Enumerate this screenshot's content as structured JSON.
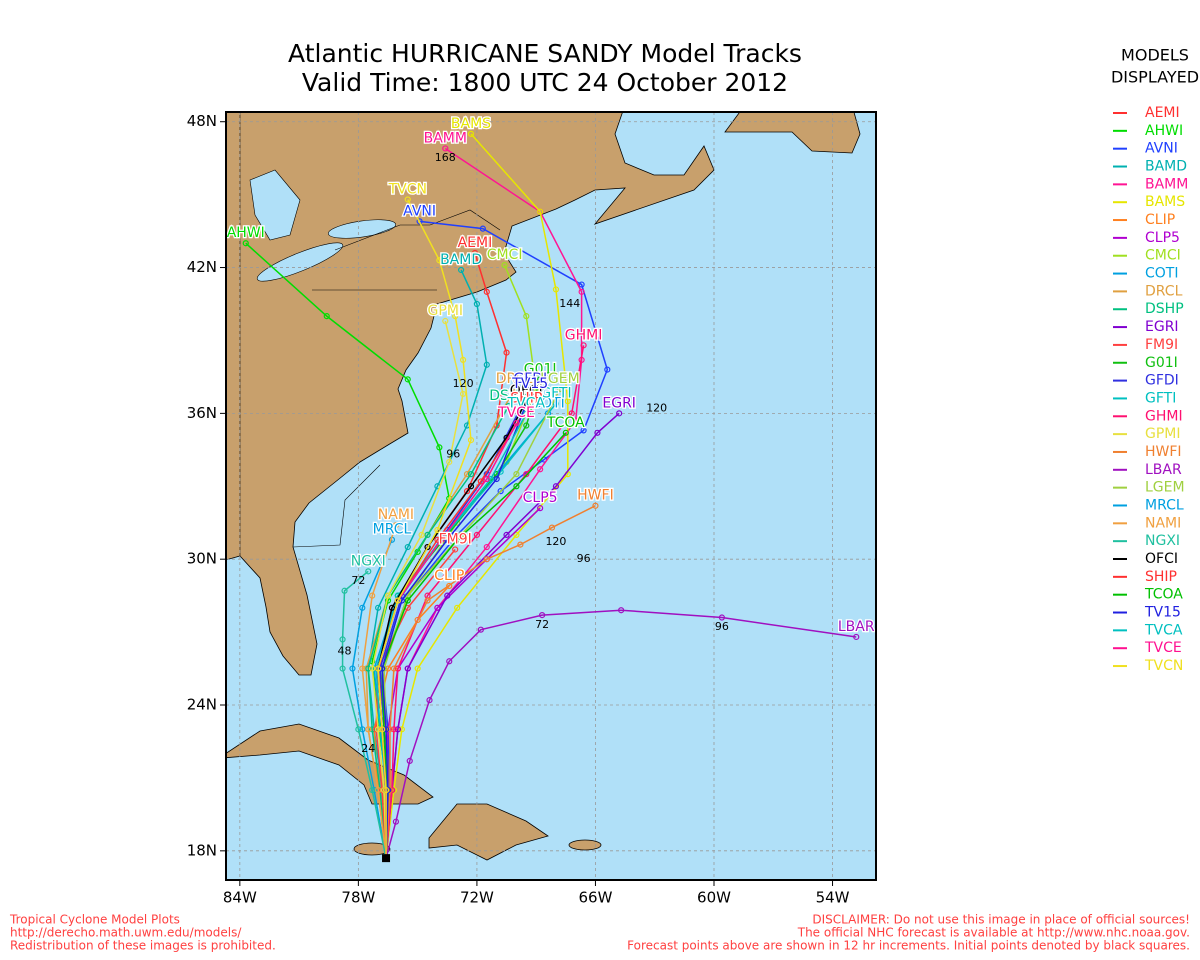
{
  "title": "Atlantic HURRICANE SANDY Model Tracks",
  "subtitle": "Valid Time: 1800 UTC 24 October 2012",
  "legend_title": [
    "MODELS",
    "DISPLAYED"
  ],
  "footer_left": [
    "Tropical Cyclone Model Plots",
    "http://derecho.math.uwm.edu/models/",
    "Redistribution of these images is prohibited."
  ],
  "footer_right": [
    "DISCLAIMER: Do not use this image in place of official sources!",
    "The official NHC forecast is available at http://www.nhc.noaa.gov.",
    "Forecast points above are shown in 12 hr increments. Initial points denoted by black squares."
  ],
  "lonlim": [
    -84.7,
    -51.8
  ],
  "latlim": [
    16.8,
    48.4
  ],
  "lonticks": [
    {
      "value": -84,
      "label": "84W"
    },
    {
      "value": -78,
      "label": "78W"
    },
    {
      "value": -72,
      "label": "72W"
    },
    {
      "value": -66,
      "label": "66W"
    },
    {
      "value": -60,
      "label": "60W"
    },
    {
      "value": -54,
      "label": "54W"
    }
  ],
  "latticks": [
    {
      "value": 18,
      "label": "18N"
    },
    {
      "value": 24,
      "label": "24N"
    },
    {
      "value": 30,
      "label": "30N"
    },
    {
      "value": 36,
      "label": "36N"
    },
    {
      "value": 42,
      "label": "42N"
    },
    {
      "value": 48,
      "label": "48N"
    }
  ],
  "grid": true,
  "start": [
    -76.6,
    17.7
  ],
  "tracks": [
    {
      "name": "AEMI",
      "color": "#ff3030",
      "points": [
        [
          -76.6,
          17.7
        ],
        [
          -76.4,
          20.5
        ],
        [
          -76.6,
          23
        ],
        [
          -77,
          25.5
        ],
        [
          -76.3,
          28
        ],
        [
          -74.5,
          30.5
        ],
        [
          -72.5,
          32.8
        ],
        [
          -71,
          35.5
        ],
        [
          -70.5,
          38.5
        ],
        [
          -71.5,
          41
        ],
        [
          -72.1,
          42.6
        ]
      ]
    },
    {
      "name": "AHWI",
      "color": "#00dd00",
      "points": [
        [
          -76.6,
          17.7
        ],
        [
          -76.5,
          20.5
        ],
        [
          -77,
          23.2
        ],
        [
          -77.3,
          25.8
        ],
        [
          -76.5,
          28.3
        ],
        [
          -75,
          30.3
        ],
        [
          -73.4,
          32.5
        ],
        [
          -73.9,
          34.6
        ],
        [
          -75.5,
          37.4
        ],
        [
          -79.6,
          40
        ],
        [
          -83.7,
          43
        ]
      ]
    },
    {
      "name": "AVNI",
      "color": "#2040ff",
      "points": [
        [
          -76.6,
          17.7
        ],
        [
          -76.4,
          20.5
        ],
        [
          -76.5,
          23
        ],
        [
          -76.8,
          25.5
        ],
        [
          -75.5,
          28.5
        ],
        [
          -73,
          31
        ],
        [
          -70.8,
          32.8
        ],
        [
          -68.6,
          34.1
        ],
        [
          -66.6,
          35.3
        ],
        [
          -65.4,
          37.8
        ],
        [
          -66.7,
          41.3
        ],
        [
          -71.7,
          43.6
        ],
        [
          -74.9,
          43.9
        ]
      ]
    },
    {
      "name": "BAMD",
      "color": "#00b0b0",
      "points": [
        [
          -76.6,
          17.7
        ],
        [
          -76.8,
          20.5
        ],
        [
          -77.2,
          23
        ],
        [
          -77.5,
          25.5
        ],
        [
          -77,
          28
        ],
        [
          -75.5,
          30.5
        ],
        [
          -74,
          33
        ],
        [
          -72.5,
          35.5
        ],
        [
          -71.5,
          38
        ],
        [
          -72,
          40.5
        ],
        [
          -72.8,
          41.9
        ]
      ]
    },
    {
      "name": "BAMM",
      "color": "#ff1493",
      "points": [
        [
          -76.6,
          17.7
        ],
        [
          -76.3,
          20.5
        ],
        [
          -76,
          23
        ],
        [
          -75.5,
          25.5
        ],
        [
          -74,
          28
        ],
        [
          -71.5,
          30.5
        ],
        [
          -68.8,
          33.7
        ],
        [
          -67,
          35.7
        ],
        [
          -66.7,
          38.2
        ],
        [
          -66.7,
          41
        ],
        [
          -68.8,
          44.3
        ],
        [
          -73.6,
          46.9
        ]
      ]
    },
    {
      "name": "BAMS",
      "color": "#e6e600",
      "points": [
        [
          -76.6,
          17.7
        ],
        [
          -76.2,
          20.5
        ],
        [
          -75.8,
          23
        ],
        [
          -75,
          25.5
        ],
        [
          -73,
          28
        ],
        [
          -70,
          31
        ],
        [
          -67.4,
          33.5
        ],
        [
          -67.4,
          36.5
        ],
        [
          -68,
          41.1
        ],
        [
          -68.8,
          44.3
        ],
        [
          -72.3,
          47.5
        ]
      ]
    },
    {
      "name": "CLIP",
      "color": "#ff8020",
      "points": [
        [
          -76.6,
          17.7
        ],
        [
          -77,
          20.5
        ],
        [
          -77.2,
          23
        ],
        [
          -76.5,
          25.5
        ],
        [
          -75,
          27.5
        ],
        [
          -73.4,
          28.9
        ]
      ]
    },
    {
      "name": "CLP5",
      "color": "#b000d0",
      "points": [
        [
          -76.6,
          17.7
        ],
        [
          -76.6,
          20.5
        ],
        [
          -76.5,
          23
        ],
        [
          -76,
          25.5
        ],
        [
          -74,
          28
        ],
        [
          -71.5,
          30
        ],
        [
          -68.8,
          32.1
        ]
      ]
    },
    {
      "name": "CMCI",
      "color": "#a0e020",
      "points": [
        [
          -76.6,
          17.7
        ],
        [
          -76.5,
          20.5
        ],
        [
          -76.7,
          23
        ],
        [
          -76.8,
          25.5
        ],
        [
          -75.5,
          28.5
        ],
        [
          -73,
          31.5
        ],
        [
          -70.5,
          34
        ],
        [
          -69,
          37
        ],
        [
          -69.5,
          40
        ],
        [
          -70.6,
          42.1
        ]
      ]
    },
    {
      "name": "COTI",
      "color": "#00a0e0",
      "points": [
        [
          -76.6,
          17.7
        ],
        [
          -76.5,
          20.5
        ],
        [
          -76.9,
          23
        ],
        [
          -77.2,
          25.5
        ],
        [
          -76,
          28.5
        ],
        [
          -73.5,
          31
        ],
        [
          -71,
          33.5
        ],
        [
          -68.4,
          36
        ]
      ]
    },
    {
      "name": "DRCL",
      "color": "#e0a040",
      "points": [
        [
          -76.6,
          17.7
        ],
        [
          -77,
          20.5
        ],
        [
          -77.5,
          23
        ],
        [
          -77.6,
          25.5
        ],
        [
          -76.5,
          28.5
        ],
        [
          -74.5,
          31
        ],
        [
          -72.5,
          33.5
        ],
        [
          -70.1,
          37
        ]
      ]
    },
    {
      "name": "DSHP",
      "color": "#00c080",
      "points": [
        [
          -76.6,
          17.7
        ],
        [
          -76.9,
          20.5
        ],
        [
          -77.3,
          23
        ],
        [
          -77.5,
          25.5
        ],
        [
          -76.5,
          28.5
        ],
        [
          -74.5,
          31
        ],
        [
          -72.3,
          33.5
        ],
        [
          -70.4,
          36.3
        ]
      ]
    },
    {
      "name": "EGRI",
      "color": "#8000d0",
      "points": [
        [
          -76.6,
          17.7
        ],
        [
          -76.3,
          20.5
        ],
        [
          -76,
          23
        ],
        [
          -75.5,
          25.5
        ],
        [
          -73.5,
          28.5
        ],
        [
          -70.5,
          31
        ],
        [
          -68,
          33
        ],
        [
          -65.9,
          35.2
        ],
        [
          -64.8,
          36
        ]
      ]
    },
    {
      "name": "FM9I",
      "color": "#ff4040",
      "points": [
        [
          -76.6,
          17.7
        ],
        [
          -76.8,
          20.5
        ],
        [
          -77.1,
          23
        ],
        [
          -77,
          25.5
        ],
        [
          -75.5,
          28
        ],
        [
          -73.1,
          30.4
        ]
      ]
    },
    {
      "name": "G01I",
      "color": "#10c010",
      "points": [
        [
          -76.6,
          17.7
        ],
        [
          -76.5,
          20.5
        ],
        [
          -76.8,
          23
        ],
        [
          -77,
          25.5
        ],
        [
          -76,
          28.5
        ],
        [
          -73.5,
          31
        ],
        [
          -71,
          33.5
        ],
        [
          -69.5,
          35.5
        ],
        [
          -68.8,
          37.4
        ]
      ]
    },
    {
      "name": "GFDI",
      "color": "#3030e0",
      "points": [
        [
          -76.6,
          17.7
        ],
        [
          -76.5,
          20.5
        ],
        [
          -76.7,
          23
        ],
        [
          -76.9,
          25.5
        ],
        [
          -75.8,
          28.5
        ],
        [
          -73.5,
          31.2
        ],
        [
          -71.5,
          33.5
        ],
        [
          -69.3,
          37
        ]
      ]
    },
    {
      "name": "GFTI",
      "color": "#00c0c0",
      "points": [
        [
          -76.6,
          17.7
        ],
        [
          -76.6,
          20.5
        ],
        [
          -76.9,
          23
        ],
        [
          -77.1,
          25.5
        ],
        [
          -76,
          28.5
        ],
        [
          -73.6,
          31
        ],
        [
          -70.8,
          33.6
        ],
        [
          -68,
          36.4
        ]
      ]
    },
    {
      "name": "GHMI",
      "color": "#ff1070",
      "points": [
        [
          -76.6,
          17.7
        ],
        [
          -76.3,
          20.5
        ],
        [
          -76.2,
          23
        ],
        [
          -76,
          25.5
        ],
        [
          -74.5,
          28.5
        ],
        [
          -72,
          31
        ],
        [
          -69.5,
          33.5
        ],
        [
          -67.2,
          36
        ],
        [
          -66.6,
          38.8
        ]
      ]
    },
    {
      "name": "GPMI",
      "color": "#e8e040",
      "points": [
        [
          -76.6,
          17.7
        ],
        [
          -76.7,
          20.5
        ],
        [
          -77,
          23
        ],
        [
          -77.3,
          25.5
        ],
        [
          -76.5,
          28.5
        ],
        [
          -74.8,
          31
        ],
        [
          -73.4,
          34
        ],
        [
          -72.7,
          36.8
        ],
        [
          -73.6,
          39.8
        ]
      ]
    },
    {
      "name": "HWFI",
      "color": "#f08030",
      "points": [
        [
          -76.6,
          17.7
        ],
        [
          -76.4,
          20.5
        ],
        [
          -76.4,
          23
        ],
        [
          -76.2,
          25.5
        ],
        [
          -74.5,
          28.3
        ],
        [
          -71.5,
          30
        ],
        [
          -69.8,
          30.6
        ],
        [
          -68.2,
          31.3
        ],
        [
          -66,
          32.2
        ]
      ]
    },
    {
      "name": "LBAR",
      "color": "#a010c0",
      "points": [
        [
          -76.6,
          17.7
        ],
        [
          -76.1,
          19.2
        ],
        [
          -75.4,
          21.7
        ],
        [
          -74.4,
          24.2
        ],
        [
          -73.4,
          25.8
        ],
        [
          -71.8,
          27.1
        ],
        [
          -68.7,
          27.7
        ],
        [
          -64.7,
          27.9
        ],
        [
          -59.6,
          27.6
        ],
        [
          -52.8,
          26.8
        ]
      ]
    },
    {
      "name": "LGEM",
      "color": "#a0d040",
      "points": [
        [
          -76.6,
          17.7
        ],
        [
          -76.5,
          20.5
        ],
        [
          -76.6,
          23
        ],
        [
          -76.7,
          25.5
        ],
        [
          -75.5,
          28.5
        ],
        [
          -72.8,
          31
        ],
        [
          -70,
          33.5
        ],
        [
          -67.8,
          37
        ]
      ]
    },
    {
      "name": "MRCL",
      "color": "#00a0e0",
      "points": [
        [
          -76.6,
          17.7
        ],
        [
          -77.2,
          20.5
        ],
        [
          -77.8,
          23
        ],
        [
          -78.3,
          25.5
        ],
        [
          -77.8,
          28
        ],
        [
          -76.3,
          30.8
        ]
      ]
    },
    {
      "name": "NAMI",
      "color": "#f0a040",
      "points": [
        [
          -76.6,
          17.7
        ],
        [
          -77,
          20.5
        ],
        [
          -77.5,
          23
        ],
        [
          -77.8,
          25.5
        ],
        [
          -77.3,
          28.5
        ],
        [
          -76.1,
          31.4
        ]
      ]
    },
    {
      "name": "NGXI",
      "color": "#20c0a0",
      "points": [
        [
          -76.6,
          17.7
        ],
        [
          -77.3,
          20.5
        ],
        [
          -78,
          23
        ],
        [
          -78.8,
          25.5
        ],
        [
          -78.8,
          26.7
        ],
        [
          -78.7,
          28.7
        ],
        [
          -77.5,
          29.5
        ]
      ]
    },
    {
      "name": "OFCI",
      "color": "#000000",
      "points": [
        [
          -76.6,
          17.7
        ],
        [
          -76.6,
          20.5
        ],
        [
          -76.8,
          23
        ],
        [
          -77,
          25.5
        ],
        [
          -76.3,
          28
        ],
        [
          -74.5,
          30.5
        ],
        [
          -72.3,
          33
        ],
        [
          -70.5,
          35
        ],
        [
          -69.5,
          36.5
        ]
      ]
    },
    {
      "name": "SHIP",
      "color": "#ff3030",
      "points": [
        [
          -76.6,
          17.7
        ],
        [
          -76.6,
          20.5
        ],
        [
          -76.8,
          23
        ],
        [
          -77,
          25.5
        ],
        [
          -76,
          28.3
        ],
        [
          -74,
          30.8
        ],
        [
          -71.8,
          33.2
        ],
        [
          -69.5,
          36.2
        ]
      ]
    },
    {
      "name": "TCOA",
      "color": "#00c000",
      "points": [
        [
          -76.6,
          17.7
        ],
        [
          -76.5,
          20.5
        ],
        [
          -76.7,
          23
        ],
        [
          -76.8,
          25.5
        ],
        [
          -75.5,
          28.3
        ],
        [
          -73,
          30.8
        ],
        [
          -70,
          33
        ],
        [
          -67.5,
          35.2
        ]
      ]
    },
    {
      "name": "TV15",
      "color": "#2020e0",
      "points": [
        [
          -76.6,
          17.7
        ],
        [
          -76.5,
          20.5
        ],
        [
          -76.6,
          23
        ],
        [
          -76.8,
          25.5
        ],
        [
          -75.8,
          28.3
        ],
        [
          -73.5,
          30.8
        ],
        [
          -71,
          33.3
        ],
        [
          -69.3,
          36.8
        ]
      ]
    },
    {
      "name": "TVCA",
      "color": "#00c0c0",
      "points": [
        [
          -76.6,
          17.7
        ],
        [
          -76.6,
          20.5
        ],
        [
          -76.8,
          23
        ],
        [
          -77,
          25.5
        ],
        [
          -76,
          28.3
        ],
        [
          -73.8,
          30.8
        ],
        [
          -71.3,
          33.3
        ],
        [
          -69.5,
          36
        ]
      ]
    },
    {
      "name": "TVCE",
      "color": "#ff1090",
      "points": [
        [
          -76.6,
          17.7
        ],
        [
          -76.6,
          20.5
        ],
        [
          -76.8,
          23
        ],
        [
          -77,
          25.5
        ],
        [
          -76,
          28.3
        ],
        [
          -73.8,
          30.8
        ],
        [
          -71.5,
          33.3
        ],
        [
          -70,
          35.6
        ]
      ]
    },
    {
      "name": "TVCN",
      "color": "#f0e020",
      "points": [
        [
          -76.6,
          17.7
        ],
        [
          -76.6,
          20.5
        ],
        [
          -76.8,
          23
        ],
        [
          -77,
          25.5
        ],
        [
          -76,
          28.3
        ],
        [
          -74,
          31.2
        ],
        [
          -72.3,
          34.9
        ],
        [
          -72.7,
          38.2
        ],
        [
          -73.1,
          40
        ],
        [
          -73.9,
          42.3
        ],
        [
          -75.5,
          44.8
        ]
      ]
    }
  ],
  "hour_labels": [
    {
      "text": "168",
      "lon": -73.6,
      "lat": 46.5
    },
    {
      "text": "144",
      "lon": -67.3,
      "lat": 40.5
    },
    {
      "text": "120",
      "lon": -72.7,
      "lat": 37.2
    },
    {
      "text": "120",
      "lon": -62.9,
      "lat": 36.2
    },
    {
      "text": "96",
      "lon": -73.2,
      "lat": 34.3
    },
    {
      "text": "96",
      "lon": -59.6,
      "lat": 27.2
    },
    {
      "text": "72",
      "lon": -68.7,
      "lat": 27.3
    },
    {
      "text": "96",
      "lon": -66.6,
      "lat": 30.0
    },
    {
      "text": "120",
      "lon": -68,
      "lat": 30.7
    },
    {
      "text": "48",
      "lon": -78.7,
      "lat": 26.2
    },
    {
      "text": "24",
      "lon": -77.5,
      "lat": 22.2
    },
    {
      "text": "72",
      "lon": -78,
      "lat": 29.1
    }
  ]
}
